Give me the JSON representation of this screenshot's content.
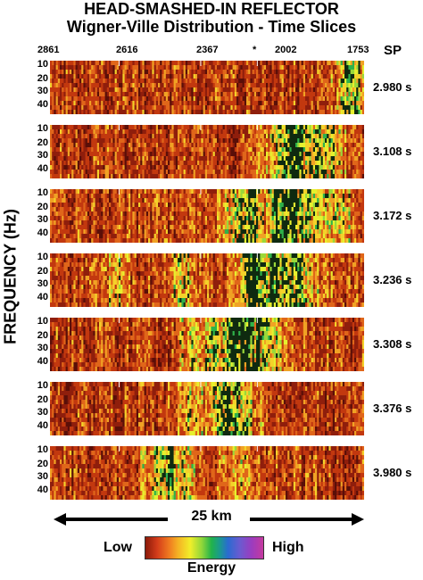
{
  "header": {
    "title": "HEAD-SMASHED-IN REFLECTOR",
    "subtitle": "Wigner-Ville Distribution - Time Slices"
  },
  "shotpoints": {
    "labels": [
      "2861",
      "2616",
      "2367",
      "*",
      "2002",
      "1753"
    ],
    "unit": "SP"
  },
  "y_axis": {
    "label": "FREQUENCY (Hz)",
    "ticks": [
      "10",
      "20",
      "30",
      "40"
    ]
  },
  "panels": [
    {
      "time": "2.980 s",
      "seed": 11,
      "hot": [
        [
          0.95,
          0.05,
          0.7
        ]
      ]
    },
    {
      "time": "3.108 s",
      "seed": 23,
      "hot": [
        [
          0.78,
          0.09,
          0.9
        ],
        [
          0.86,
          0.06,
          0.8
        ]
      ]
    },
    {
      "time": "3.172 s",
      "seed": 37,
      "hot": [
        [
          0.62,
          0.07,
          0.8
        ],
        [
          0.76,
          0.1,
          0.9
        ],
        [
          0.9,
          0.05,
          0.7
        ]
      ]
    },
    {
      "time": "3.236 s",
      "seed": 41,
      "hot": [
        [
          0.64,
          0.05,
          1.0
        ],
        [
          0.74,
          0.12,
          0.85
        ],
        [
          0.2,
          0.05,
          0.5
        ],
        [
          0.42,
          0.05,
          0.5
        ]
      ]
    },
    {
      "time": "3.308 s",
      "seed": 53,
      "hot": [
        [
          0.62,
          0.1,
          0.95
        ],
        [
          0.5,
          0.05,
          0.6
        ],
        [
          0.45,
          0.05,
          0.5
        ]
      ]
    },
    {
      "time": "3.376 s",
      "seed": 67,
      "hot": [
        [
          0.57,
          0.08,
          0.85
        ],
        [
          0.45,
          0.05,
          0.5
        ]
      ]
    },
    {
      "time": "3.980 s",
      "seed": 79,
      "hot": [
        [
          0.38,
          0.08,
          0.75
        ],
        [
          0.6,
          0.05,
          0.45
        ]
      ]
    }
  ],
  "scale": {
    "label": "25 km"
  },
  "colorbar": {
    "low": "Low",
    "high": "High",
    "title": "Energy"
  }
}
